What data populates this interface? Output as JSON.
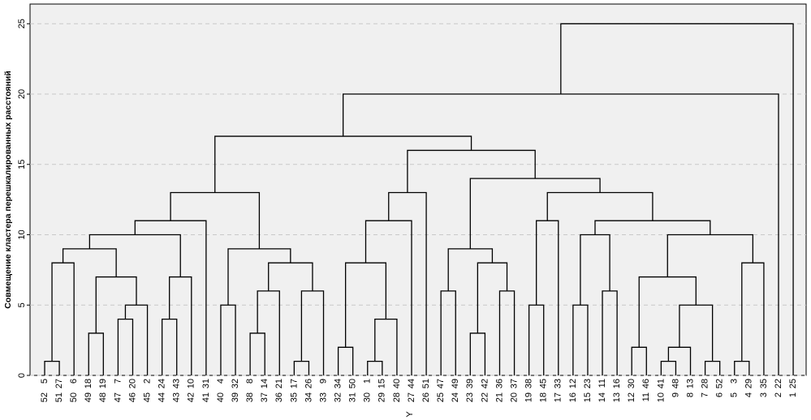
{
  "chart_data": {
    "type": "dendrogram",
    "y_label": "Совмещение кластера перешкалированных расстояний",
    "x_label": "Y",
    "categories": [
      "5",
      "27",
      "6",
      "18",
      "19",
      "7",
      "20",
      "2",
      "24",
      "43",
      "10",
      "31",
      "4",
      "32",
      "8",
      "14",
      "21",
      "17",
      "26",
      "9",
      "34",
      "50",
      "1",
      "15",
      "40",
      "44",
      "51",
      "47",
      "49",
      "39",
      "42",
      "36",
      "37",
      "38",
      "45",
      "33",
      "12",
      "23",
      "11",
      "16",
      "30",
      "46",
      "41",
      "48",
      "13",
      "28",
      "52",
      "3",
      "29",
      "35",
      "22",
      "25"
    ],
    "case_numbers": [
      "52",
      "51",
      "50",
      "49",
      "48",
      "47",
      "46",
      "45",
      "44",
      "43",
      "42",
      "41",
      "40",
      "39",
      "38",
      "37",
      "36",
      "35",
      "34",
      "33",
      "32",
      "31",
      "30",
      "29",
      "28",
      "27",
      "26",
      "25",
      "24",
      "23",
      "22",
      "21",
      "20",
      "19",
      "18",
      "17",
      "16",
      "15",
      "14",
      "13",
      "12",
      "11",
      "10",
      "9",
      "8",
      "7",
      "6",
      "5",
      "4",
      "3",
      "2",
      "1"
    ],
    "merges": [
      [
        0,
        1,
        1
      ],
      [
        52,
        2,
        8
      ],
      [
        3,
        4,
        3
      ],
      [
        5,
        6,
        4
      ],
      [
        55,
        7,
        5
      ],
      [
        54,
        56,
        7
      ],
      [
        53,
        57,
        9
      ],
      [
        8,
        9,
        4
      ],
      [
        59,
        10,
        7
      ],
      [
        58,
        60,
        10
      ],
      [
        61,
        11,
        11
      ],
      [
        12,
        13,
        5
      ],
      [
        14,
        15,
        3
      ],
      [
        64,
        16,
        6
      ],
      [
        17,
        18,
        1
      ],
      [
        66,
        19,
        6
      ],
      [
        65,
        67,
        8
      ],
      [
        63,
        68,
        9
      ],
      [
        62,
        69,
        13
      ],
      [
        20,
        21,
        2
      ],
      [
        22,
        23,
        1
      ],
      [
        72,
        24,
        4
      ],
      [
        71,
        73,
        8
      ],
      [
        74,
        25,
        11
      ],
      [
        75,
        26,
        13
      ],
      [
        27,
        28,
        6
      ],
      [
        29,
        30,
        3
      ],
      [
        31,
        32,
        6
      ],
      [
        78,
        79,
        8
      ],
      [
        77,
        80,
        9
      ],
      [
        33,
        34,
        5
      ],
      [
        82,
        35,
        11
      ],
      [
        36,
        37,
        5
      ],
      [
        38,
        39,
        6
      ],
      [
        84,
        85,
        10
      ],
      [
        40,
        41,
        2
      ],
      [
        42,
        43,
        1
      ],
      [
        88,
        44,
        2
      ],
      [
        45,
        46,
        1
      ],
      [
        89,
        90,
        5
      ],
      [
        87,
        91,
        7
      ],
      [
        47,
        48,
        1
      ],
      [
        93,
        49,
        8
      ],
      [
        92,
        94,
        10
      ],
      [
        86,
        95,
        11
      ],
      [
        83,
        96,
        13
      ],
      [
        81,
        97,
        14
      ],
      [
        76,
        98,
        16
      ],
      [
        70,
        99,
        17
      ],
      [
        100,
        50,
        20
      ],
      [
        101,
        51,
        25
      ]
    ],
    "ylim": [
      0,
      26.4
    ],
    "yticks": [
      0,
      5,
      10,
      15,
      20,
      25
    ],
    "grid": true,
    "color": "#000000"
  }
}
